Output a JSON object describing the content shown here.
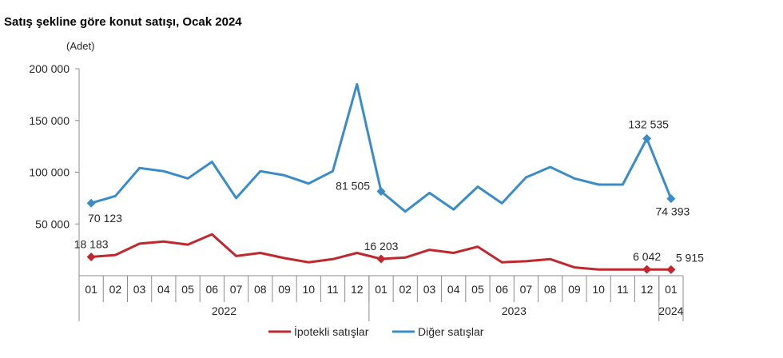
{
  "chart_data": {
    "type": "line",
    "title": "Satış şekline göre konut satışı, Ocak 2024",
    "ylabel": "(Adet)",
    "ylim": [
      0,
      200000
    ],
    "yticks": [
      {
        "value": 50000,
        "label": "50 000"
      },
      {
        "value": 100000,
        "label": "100 000"
      },
      {
        "value": 150000,
        "label": "150 000"
      },
      {
        "value": 200000,
        "label": "200 000"
      }
    ],
    "categories": [
      "01",
      "02",
      "03",
      "04",
      "05",
      "06",
      "07",
      "08",
      "09",
      "10",
      "11",
      "12",
      "01",
      "02",
      "03",
      "04",
      "05",
      "06",
      "07",
      "08",
      "09",
      "10",
      "11",
      "12",
      "01"
    ],
    "year_groups": [
      {
        "label": "2022",
        "start": 0,
        "end": 11
      },
      {
        "label": "2023",
        "start": 12,
        "end": 23
      },
      {
        "label": "2024",
        "start": 24,
        "end": 24
      }
    ],
    "series": [
      {
        "name": "İpotekli satışlar",
        "color": "#c0282d",
        "values": [
          18183,
          20000,
          31000,
          33000,
          30000,
          40000,
          19000,
          22000,
          17000,
          13000,
          16000,
          22000,
          16203,
          17500,
          25000,
          22000,
          28000,
          13000,
          14000,
          16000,
          8000,
          6000,
          6000,
          6042,
          5915
        ]
      },
      {
        "name": "Diğer satışlar",
        "color": "#3a8cc8",
        "values": [
          70123,
          77000,
          104000,
          101000,
          94000,
          110000,
          75000,
          101000,
          97000,
          89000,
          101000,
          185000,
          81505,
          62000,
          80000,
          64000,
          86000,
          70000,
          95000,
          105000,
          94000,
          88000,
          88000,
          132535,
          74393
        ]
      }
    ],
    "data_labels": [
      {
        "series": 0,
        "index": 0,
        "text": "18 183"
      },
      {
        "series": 0,
        "index": 12,
        "text": "16 203"
      },
      {
        "series": 0,
        "index": 23,
        "text": "6 042"
      },
      {
        "series": 0,
        "index": 24,
        "text": "5 915"
      },
      {
        "series": 1,
        "index": 0,
        "text": "70 123"
      },
      {
        "series": 1,
        "index": 12,
        "text": "81 505"
      },
      {
        "series": 1,
        "index": 23,
        "text": "132 535"
      },
      {
        "series": 1,
        "index": 24,
        "text": "74 393"
      }
    ],
    "legend_position": "bottom"
  }
}
